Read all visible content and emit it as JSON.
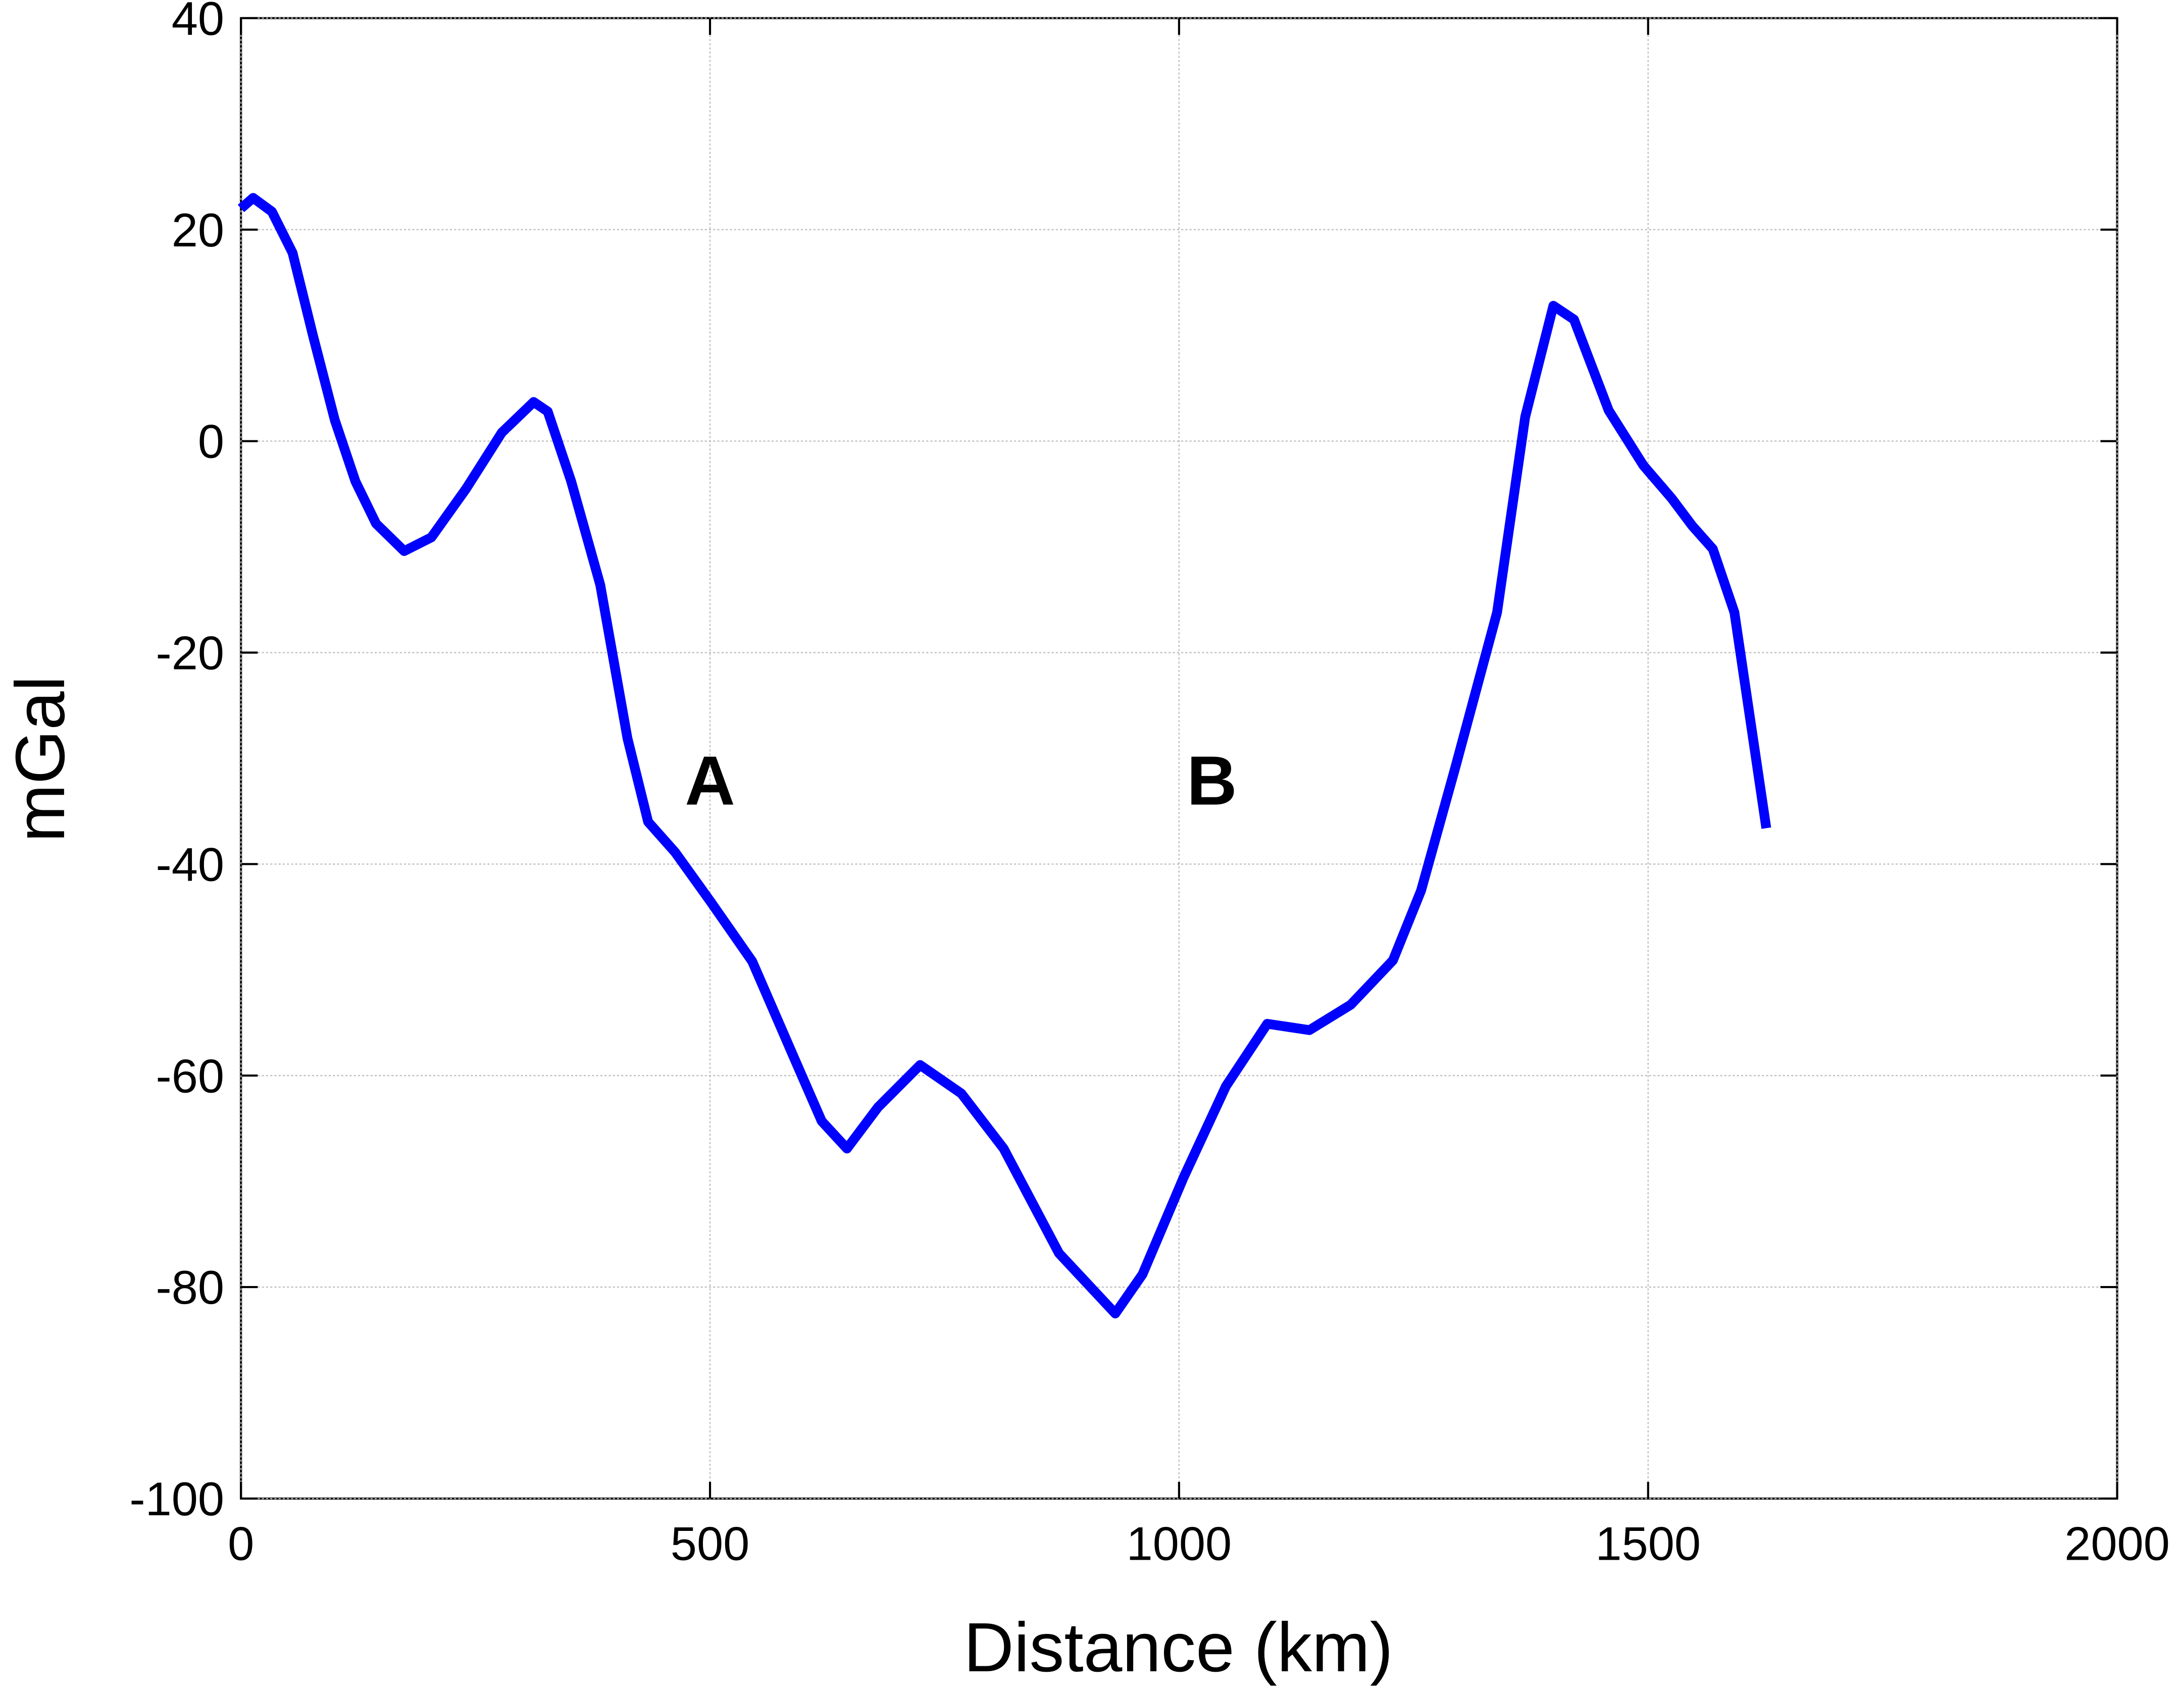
{
  "chart_data": {
    "type": "line",
    "xlabel": "Distance (km)",
    "ylabel": "mGal",
    "x": [
      0,
      13,
      33,
      55,
      77,
      100,
      122,
      144,
      174,
      203,
      240,
      278,
      312,
      327,
      352,
      383,
      412,
      434,
      463,
      501,
      545,
      590,
      619,
      646,
      679,
      724,
      768,
      813,
      872,
      932,
      961,
      1005,
      1050,
      1094,
      1139,
      1183,
      1228,
      1258,
      1295,
      1339,
      1369,
      1399,
      1421,
      1458,
      1495,
      1525,
      1547,
      1569,
      1592,
      1626
    ],
    "series": [
      {
        "color": "#0000ff",
        "values": [
          22,
          23,
          21.7,
          17.8,
          9.9,
          2,
          -3.8,
          -7.8,
          -10.4,
          -9.1,
          -4.5,
          0.8,
          3.7,
          2.8,
          -3.8,
          -13.6,
          -28.1,
          -36,
          -38.9,
          -43.6,
          -49.2,
          -58.4,
          -64.3,
          -66.9,
          -63,
          -59,
          -61.7,
          -66.9,
          -76.8,
          -82.5,
          -78.8,
          -69.6,
          -61,
          -55.1,
          -55.7,
          -53.3,
          -49.1,
          -42.5,
          -30.7,
          -16.2,
          2.3,
          12.8,
          11.5,
          2.9,
          -2.3,
          -5.4,
          -8,
          -10.2,
          -16.2,
          -36.6
        ]
      }
    ],
    "annotations": [
      {
        "text": "A",
        "x": 500,
        "y": -32
      },
      {
        "text": "B",
        "x": 1035,
        "y": -32
      }
    ],
    "xlim": [
      0,
      2000
    ],
    "xticks": [
      0,
      500,
      1000,
      1500,
      2000
    ],
    "ylim": [
      -100,
      40
    ],
    "yticks": [
      -100,
      -80,
      -60,
      -40,
      -20,
      0,
      20,
      40
    ],
    "grid": true
  }
}
